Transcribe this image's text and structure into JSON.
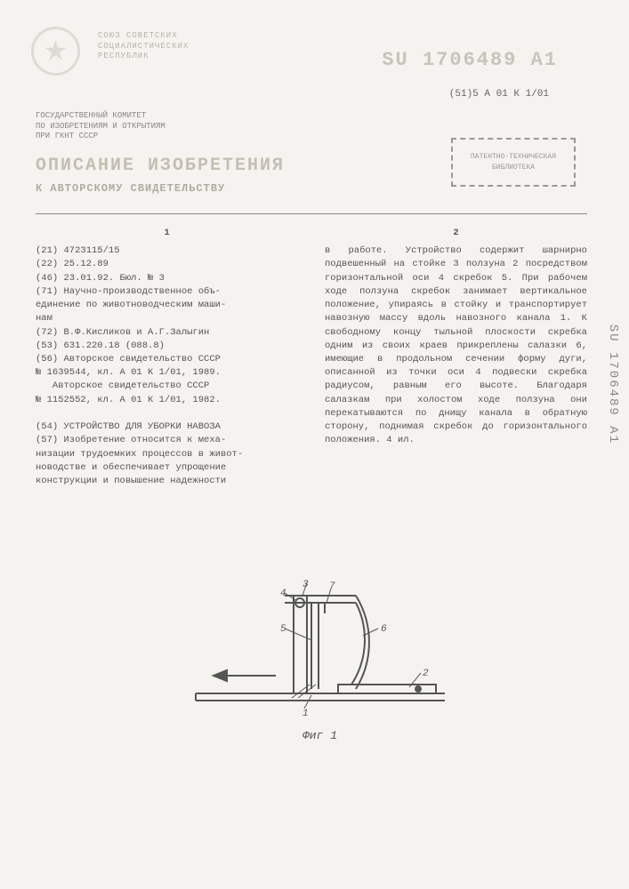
{
  "header": {
    "union_label": "СОЮЗ СОВЕТСКИХ\nСОЦИАЛИСТИЧЕСКИХ\nРЕСПУБЛИК",
    "pub_number": "SU 1706489 A1",
    "class_code": "(51)5 А 01 К 1/01",
    "committee": "ГОСУДАРСТВЕННЫЙ КОМИТЕТ\nПО ИЗОБРЕТЕНИЯМ И ОТКРЫТИЯМ\nПРИ ГКНТ СССР",
    "title_main": "ОПИСАНИЕ ИЗОБРЕТЕНИЯ",
    "title_sub": "К АВТОРСКОМУ СВИДЕТЕЛЬСТВУ",
    "stamp_text": "ПАТЕНТНО-ТЕХНИЧЕСКАЯ\nБИБЛИОТЕКА"
  },
  "col1": {
    "num": "1",
    "lines": [
      "(21) 4723115/15",
      "(22) 25.12.89",
      "(46) 23.01.92. Бюл. № 3",
      "(71) Научно-производственное объ-",
      "единение по животноводческим маши-",
      "нам",
      "(72) В.Ф.Кисликов и А.Г.Залыгин",
      "(53) 631.220.18 (088.8)",
      "(56) Авторское свидетельство СССР",
      "№ 1639544, кл. А 01 К 1/01, 1989.",
      "   Авторское свидетельство СССР",
      "№ 1152552, кл. А 01 К 1/01, 1982.",
      "",
      "(54) УСТРОЙСТВО ДЛЯ УБОРКИ НАВОЗА",
      "(57) Изобретение относится к меха-",
      "низации трудоемких процессов в живот-",
      "новодстве и обеспечивает упрощение",
      "конструкции и повышение надежности"
    ]
  },
  "col2": {
    "num": "2",
    "text": "в работе. Устройство содержит шарнирно подвешенный на стойке 3 ползуна 2 посредством горизонтальной оси 4 скребок 5. При рабочем ходе ползуна скребок занимает вертикальное положение, упираясь в стойку и транспортирует навозную массу вдоль навозного канала 1. К свободному концу тыльной плоскости скребка одним из своих краев прикреплены салазки 6, имеющие в продольном сечении форму дуги, описанной из точки оси 4 подвески скребка радиусом, равным его высоте. Благодаря салазкам при холостом ходе ползуна они перекатываются по днищу канала в обратную сторону, поднимая скребок до горизонтального положения. 4 ил."
  },
  "figure": {
    "label": "Фиг 1",
    "callouts": [
      "1",
      "2",
      "3",
      "4",
      "5",
      "6",
      "7"
    ],
    "stroke": "#555555",
    "stroke_width": 2,
    "font_size": 11
  },
  "side": {
    "text": "SU 1706489 A1"
  },
  "colors": {
    "page_bg": "#f5f3ef",
    "faded_text": "#c8c4ba",
    "body_text": "#555555",
    "divider": "#888888"
  }
}
